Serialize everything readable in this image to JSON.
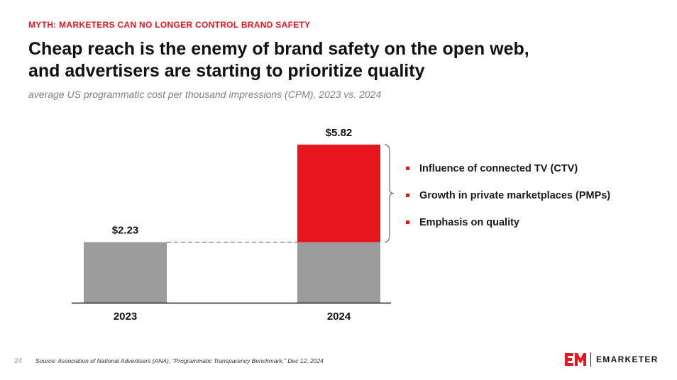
{
  "header": {
    "kicker": "MYTH: MARKETERS CAN NO LONGER CONTROL BRAND SAFETY",
    "title_line1": "Cheap reach is the enemy of brand safety on the open web,",
    "title_line2": "and advertisers are starting to prioritize quality",
    "subtitle": "average US programmatic cost per thousand impressions (CPM), 2023 vs. 2024"
  },
  "chart_data": {
    "type": "bar",
    "categories": [
      "2023",
      "2024"
    ],
    "values": [
      2.23,
      5.82
    ],
    "value_labels": [
      "$2.23",
      "$5.82"
    ],
    "increase": 3.59,
    "ylim": [
      0,
      5.82
    ],
    "grid": false,
    "colors": {
      "base": "#9b9b9b",
      "increase": "#e8151c",
      "axis": "#1a1a1a",
      "connector": "#666666"
    },
    "annotations": [
      "Influence of connected TV (CTV)",
      "Growth in private marketplaces (PMPs)",
      "Emphasis on quality"
    ]
  },
  "footer": {
    "page_number": "24",
    "source": "Source: Association of National Advertisers (ANA), \"Programmatic Transparency Benchmark,\" Dec 12, 2024",
    "brand": "EMARKETER",
    "brand_color": "#e8151c"
  }
}
